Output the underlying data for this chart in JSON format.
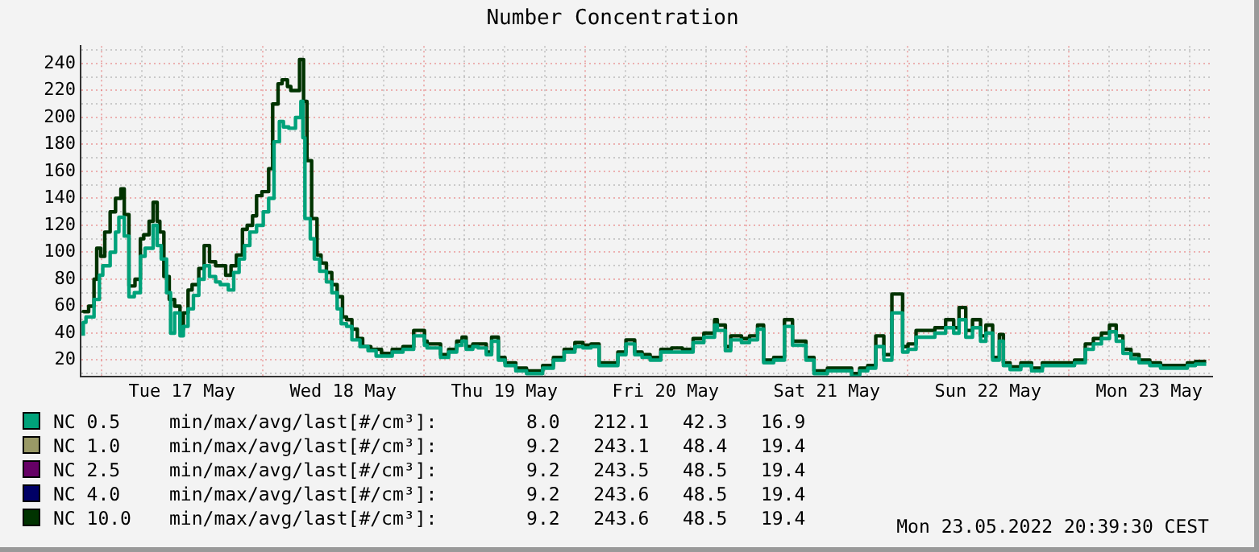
{
  "chart_data": {
    "type": "step",
    "title": "Number Concentration",
    "legend": "bottom left",
    "grid": true,
    "marker": "none",
    "xlim": [
      "2022-05-16T20:54",
      "2022-05-23T21:24"
    ],
    "xticks": [
      {
        "value": "2022-05-17T00:00",
        "label": null
      },
      {
        "value": "2022-05-17T06:00",
        "label": null
      },
      {
        "value": "2022-05-17T12:00",
        "label": "Tue 17 May"
      },
      {
        "value": "2022-05-17T18:00",
        "label": null
      },
      {
        "value": "2022-05-18T00:00",
        "label": null
      },
      {
        "value": "2022-05-18T06:00",
        "label": null
      },
      {
        "value": "2022-05-18T12:00",
        "label": "Wed 18 May"
      },
      {
        "value": "2022-05-18T18:00",
        "label": null
      },
      {
        "value": "2022-05-19T00:00",
        "label": null
      },
      {
        "value": "2022-05-19T06:00",
        "label": null
      },
      {
        "value": "2022-05-19T12:00",
        "label": "Thu 19 May"
      },
      {
        "value": "2022-05-19T18:00",
        "label": null
      },
      {
        "value": "2022-05-20T00:00",
        "label": null
      },
      {
        "value": "2022-05-20T06:00",
        "label": null
      },
      {
        "value": "2022-05-20T12:00",
        "label": "Fri 20 May"
      },
      {
        "value": "2022-05-20T18:00",
        "label": null
      },
      {
        "value": "2022-05-21T00:00",
        "label": null
      },
      {
        "value": "2022-05-21T06:00",
        "label": null
      },
      {
        "value": "2022-05-21T12:00",
        "label": "Sat 21 May"
      },
      {
        "value": "2022-05-21T18:00",
        "label": null
      },
      {
        "value": "2022-05-22T00:00",
        "label": null
      },
      {
        "value": "2022-05-22T06:00",
        "label": null
      },
      {
        "value": "2022-05-22T12:00",
        "label": "Sun 22 May"
      },
      {
        "value": "2022-05-22T18:00",
        "label": null
      },
      {
        "value": "2022-05-23T00:00",
        "label": null
      },
      {
        "value": "2022-05-23T06:00",
        "label": null
      },
      {
        "value": "2022-05-23T12:00",
        "label": "Mon 23 May"
      },
      {
        "value": "2022-05-23T18:00",
        "label": null
      }
    ],
    "ylim": [
      8,
      253
    ],
    "yticks": [
      {
        "value": 10,
        "label": null
      },
      20,
      {
        "value": 30,
        "label": null
      },
      40,
      {
        "value": 50,
        "label": null
      },
      60,
      {
        "value": 70,
        "label": null
      },
      80,
      {
        "value": 90,
        "label": null
      },
      100,
      {
        "value": 110,
        "label": null
      },
      120,
      {
        "value": 130,
        "label": null
      },
      140,
      {
        "value": 150,
        "label": null
      },
      160,
      {
        "value": 170,
        "label": null
      },
      180,
      {
        "value": 190,
        "label": null
      },
      200,
      {
        "value": 210,
        "label": null
      },
      220,
      {
        "value": 230,
        "label": null
      },
      240,
      {
        "value": 250,
        "label": null
      }
    ],
    "annotations": [
      "min/max/avg/last[#/cm³]:        8.0   212.1   42.3   16.9",
      "min/max/avg/last[#/cm³]:        9.2   243.1   48.4   19.4",
      "min/max/avg/last[#/cm³]:        9.2   243.5   48.5   19.4",
      "min/max/avg/last[#/cm³]:        9.2   243.6   48.5   19.4",
      "min/max/avg/last[#/cm³]:        9.2   243.6   48.5   19.4",
      "Mon 23.05.2022 20:39:30 CEST"
    ],
    "series": [
      {
        "name": "NC 0.5",
        "color": "#00a27a",
        "x": [
          "2022-05-16T21:18",
          "2022-05-16T21:42",
          "2022-05-16T22:54",
          "2022-05-16T23:42",
          "2022-05-17T00:12",
          "2022-05-17T01:18",
          "2022-05-17T02:06",
          "2022-05-17T02:36",
          "2022-05-17T03:24",
          "2022-05-17T04:06",
          "2022-05-17T04:54",
          "2022-05-17T05:48",
          "2022-05-17T06:30",
          "2022-05-17T07:42",
          "2022-05-17T08:18",
          "2022-05-17T08:54",
          "2022-05-17T09:42",
          "2022-05-17T10:18",
          "2022-05-17T10:54",
          "2022-05-17T11:42",
          "2022-05-17T12:12",
          "2022-05-17T12:54",
          "2022-05-17T13:42",
          "2022-05-17T14:30",
          "2022-05-17T15:18",
          "2022-05-17T16:06",
          "2022-05-17T17:00",
          "2022-05-17T17:42",
          "2022-05-17T18:54",
          "2022-05-17T19:42",
          "2022-05-17T20:30",
          "2022-05-17T21:18",
          "2022-05-17T22:06",
          "2022-05-17T23:06",
          "2022-05-18T00:06",
          "2022-05-18T00:54",
          "2022-05-18T01:42",
          "2022-05-18T02:30",
          "2022-05-18T03:06",
          "2022-05-18T03:54",
          "2022-05-18T04:54",
          "2022-05-18T05:42",
          "2022-05-18T06:00",
          "2022-05-18T06:18",
          "2022-05-18T07:06",
          "2022-05-18T07:42",
          "2022-05-18T08:30",
          "2022-05-18T09:30",
          "2022-05-18T10:18",
          "2022-05-18T11:06",
          "2022-05-18T11:42",
          "2022-05-18T12:30",
          "2022-05-18T13:18",
          "2022-05-18T14:30",
          "2022-05-18T15:42",
          "2022-05-18T16:54",
          "2022-05-18T19:18",
          "2022-05-18T20:54",
          "2022-05-18T22:30",
          "2022-05-19T00:06",
          "2022-05-19T00:30",
          "2022-05-19T02:30",
          "2022-05-19T03:42",
          "2022-05-19T04:54",
          "2022-05-19T05:42",
          "2022-05-19T06:18",
          "2022-05-19T07:18",
          "2022-05-19T08:06",
          "2022-05-19T09:18",
          "2022-05-19T10:06",
          "2022-05-19T11:06",
          "2022-05-19T12:06",
          "2022-05-19T13:42",
          "2022-05-19T15:18",
          "2022-05-19T17:42",
          "2022-05-19T19:18",
          "2022-05-19T20:54",
          "2022-05-19T22:30",
          "2022-05-19T23:42",
          "2022-05-20T00:54",
          "2022-05-20T02:06",
          "2022-05-20T03:18",
          "2022-05-20T04:54",
          "2022-05-20T06:06",
          "2022-05-20T07:24",
          "2022-05-20T08:30",
          "2022-05-20T09:42",
          "2022-05-20T11:18",
          "2022-05-20T12:54",
          "2022-05-20T14:30",
          "2022-05-20T16:06",
          "2022-05-20T17:42",
          "2022-05-20T19:18",
          "2022-05-20T19:42",
          "2022-05-20T20:54",
          "2022-05-20T21:42",
          "2022-05-20T23:18",
          "2022-05-21T00:30",
          "2022-05-21T01:42",
          "2022-05-21T02:36",
          "2022-05-21T04:06",
          "2022-05-21T05:42",
          "2022-05-21T06:54",
          "2022-05-21T07:42",
          "2022-05-21T08:54",
          "2022-05-21T10:06",
          "2022-05-21T12:06",
          "2022-05-21T14:06",
          "2022-05-21T15:42",
          "2022-05-21T16:54",
          "2022-05-21T18:06",
          "2022-05-21T19:18",
          "2022-05-21T20:30",
          "2022-05-21T21:42",
          "2022-05-21T23:18",
          "2022-05-22T00:06",
          "2022-05-22T01:18",
          "2022-05-22T02:30",
          "2022-05-22T04:06",
          "2022-05-22T05:42",
          "2022-05-22T06:54",
          "2022-05-22T07:42",
          "2022-05-22T08:42",
          "2022-05-22T09:42",
          "2022-05-22T10:54",
          "2022-05-22T11:42",
          "2022-05-22T12:42",
          "2022-05-22T13:42",
          "2022-05-22T14:18",
          "2022-05-22T15:18",
          "2022-05-22T16:54",
          "2022-05-22T18:30",
          "2022-05-22T20:06",
          "2022-05-22T21:18",
          "2022-05-22T22:54",
          "2022-05-23T00:54",
          "2022-05-23T02:30",
          "2022-05-23T03:42",
          "2022-05-23T04:54",
          "2022-05-23T06:06",
          "2022-05-23T07:06",
          "2022-05-23T08:06",
          "2022-05-23T09:18",
          "2022-05-23T10:30",
          "2022-05-23T12:06",
          "2022-05-23T13:42",
          "2022-05-23T15:18",
          "2022-05-23T16:54",
          "2022-05-23T17:42",
          "2022-05-23T18:54",
          "2022-05-23T20:30"
        ],
        "values": [
          38,
          48,
          52,
          65,
          83,
          90,
          100,
          115,
          126,
          112,
          67,
          70,
          97,
          103,
          120,
          105,
          95,
          70,
          40,
          55,
          38,
          45,
          58,
          68,
          80,
          90,
          82,
          78,
          76,
          72,
          85,
          95,
          105,
          115,
          120,
          130,
          140,
          182,
          197,
          193,
          192,
          200,
          212,
          185,
          125,
          110,
          95,
          86,
          78,
          70,
          58,
          47,
          45,
          35,
          30,
          27,
          23,
          26,
          28,
          38,
          31,
          29,
          22,
          26,
          31,
          34,
          28,
          30,
          29,
          24,
          34,
          20,
          16,
          12,
          10,
          14,
          20,
          26,
          30,
          29,
          30,
          16,
          16,
          24,
          32,
          24,
          22,
          20,
          26,
          26,
          26,
          33,
          37,
          46,
          42,
          27,
          35,
          33,
          35,
          43,
          18,
          20,
          45,
          31,
          31,
          20,
          10,
          12,
          12,
          8,
          12,
          14,
          30,
          20,
          55,
          26,
          28,
          37,
          37,
          40,
          44,
          40,
          50,
          37,
          44,
          34,
          40,
          20,
          34,
          16,
          13,
          16,
          12,
          16,
          16,
          16,
          18,
          28,
          32,
          36,
          41,
          34,
          25,
          21,
          18,
          16,
          14,
          14,
          14,
          16,
          17
        ]
      },
      {
        "name": "NC 1.0",
        "color": "#999966",
        "values": [
          null
        ]
      },
      {
        "name": "NC 2.5",
        "color": "#660066",
        "values": [
          null
        ]
      },
      {
        "name": "NC 4.0",
        "color": "#000066",
        "values": [
          null
        ]
      },
      {
        "name": "NC 10.0",
        "color": "#003300",
        "x": [
          "2022-05-16T21:18",
          "2022-05-16T22:06",
          "2022-05-16T22:54",
          "2022-05-16T23:18",
          "2022-05-16T23:54",
          "2022-05-17T00:30",
          "2022-05-17T01:18",
          "2022-05-17T02:06",
          "2022-05-17T02:54",
          "2022-05-17T03:24",
          "2022-05-17T04:06",
          "2022-05-17T05:00",
          "2022-05-17T05:48",
          "2022-05-17T06:18",
          "2022-05-17T07:06",
          "2022-05-17T07:42",
          "2022-05-17T08:18",
          "2022-05-17T08:42",
          "2022-05-17T09:18",
          "2022-05-17T10:06",
          "2022-05-17T10:54",
          "2022-05-17T11:42",
          "2022-05-17T12:12",
          "2022-05-17T12:54",
          "2022-05-17T13:30",
          "2022-05-17T14:30",
          "2022-05-17T15:18",
          "2022-05-17T16:06",
          "2022-05-17T17:00",
          "2022-05-17T17:42",
          "2022-05-17T18:30",
          "2022-05-17T19:18",
          "2022-05-17T20:06",
          "2022-05-17T21:00",
          "2022-05-17T21:42",
          "2022-05-17T22:30",
          "2022-05-17T23:06",
          "2022-05-17T23:54",
          "2022-05-18T00:54",
          "2022-05-18T01:30",
          "2022-05-18T02:18",
          "2022-05-18T02:54",
          "2022-05-18T03:42",
          "2022-05-18T04:12",
          "2022-05-18T05:00",
          "2022-05-18T05:30",
          "2022-05-18T06:06",
          "2022-05-18T06:36",
          "2022-05-18T07:18",
          "2022-05-18T08:06",
          "2022-05-18T08:42",
          "2022-05-18T09:30",
          "2022-05-18T10:18",
          "2022-05-18T11:06",
          "2022-05-18T11:54",
          "2022-05-18T12:30",
          "2022-05-18T13:18",
          "2022-05-18T14:06",
          "2022-05-18T14:54",
          "2022-05-18T16:06",
          "2022-05-18T17:42",
          "2022-05-18T19:18",
          "2022-05-18T20:54",
          "2022-05-18T22:30",
          "2022-05-19T00:06",
          "2022-05-19T00:30",
          "2022-05-19T02:30",
          "2022-05-19T03:42",
          "2022-05-19T04:54",
          "2022-05-19T05:42",
          "2022-05-19T06:18",
          "2022-05-19T07:18",
          "2022-05-19T08:06",
          "2022-05-19T09:18",
          "2022-05-19T10:06",
          "2022-05-19T11:06",
          "2022-05-19T12:06",
          "2022-05-19T13:42",
          "2022-05-19T15:18",
          "2022-05-19T17:42",
          "2022-05-19T19:18",
          "2022-05-19T20:54",
          "2022-05-19T22:30",
          "2022-05-19T23:42",
          "2022-05-20T00:54",
          "2022-05-20T02:06",
          "2022-05-20T03:18",
          "2022-05-20T04:54",
          "2022-05-20T06:06",
          "2022-05-20T07:24",
          "2022-05-20T08:30",
          "2022-05-20T09:42",
          "2022-05-20T11:18",
          "2022-05-20T12:54",
          "2022-05-20T14:30",
          "2022-05-20T16:06",
          "2022-05-20T17:42",
          "2022-05-20T19:18",
          "2022-05-20T19:42",
          "2022-05-20T20:54",
          "2022-05-20T21:42",
          "2022-05-20T23:18",
          "2022-05-21T00:30",
          "2022-05-21T01:42",
          "2022-05-21T02:36",
          "2022-05-21T04:06",
          "2022-05-21T05:42",
          "2022-05-21T06:54",
          "2022-05-21T07:42",
          "2022-05-21T08:54",
          "2022-05-21T10:06",
          "2022-05-21T12:06",
          "2022-05-21T14:06",
          "2022-05-21T15:42",
          "2022-05-21T16:54",
          "2022-05-21T18:06",
          "2022-05-21T19:18",
          "2022-05-21T20:30",
          "2022-05-21T21:42",
          "2022-05-21T23:18",
          "2022-05-22T00:06",
          "2022-05-22T01:18",
          "2022-05-22T02:30",
          "2022-05-22T04:06",
          "2022-05-22T05:42",
          "2022-05-22T06:54",
          "2022-05-22T07:42",
          "2022-05-22T08:42",
          "2022-05-22T09:42",
          "2022-05-22T10:54",
          "2022-05-22T11:42",
          "2022-05-22T12:42",
          "2022-05-22T13:42",
          "2022-05-22T14:18",
          "2022-05-22T15:18",
          "2022-05-22T16:54",
          "2022-05-22T18:30",
          "2022-05-22T20:06",
          "2022-05-22T21:18",
          "2022-05-22T22:54",
          "2022-05-23T00:54",
          "2022-05-23T02:30",
          "2022-05-23T03:42",
          "2022-05-23T04:54",
          "2022-05-23T06:06",
          "2022-05-23T07:06",
          "2022-05-23T08:06",
          "2022-05-23T09:18",
          "2022-05-23T10:30",
          "2022-05-23T12:06",
          "2022-05-23T13:42",
          "2022-05-23T15:18",
          "2022-05-23T16:54",
          "2022-05-23T17:42",
          "2022-05-23T18:54",
          "2022-05-23T20:30"
        ],
        "values": [
          55,
          56,
          60,
          80,
          103,
          97,
          115,
          130,
          140,
          147,
          128,
          75,
          80,
          110,
          113,
          123,
          137,
          123,
          115,
          82,
          65,
          60,
          43,
          55,
          72,
          76,
          88,
          105,
          93,
          90,
          90,
          83,
          90,
          98,
          117,
          120,
          127,
          142,
          145,
          162,
          210,
          225,
          228,
          223,
          220,
          220,
          243,
          212,
          168,
          125,
          98,
          92,
          85,
          76,
          67,
          52,
          50,
          43,
          36,
          30,
          28,
          25,
          28,
          30,
          42,
          34,
          32,
          24,
          28,
          34,
          37,
          30,
          32,
          32,
          26,
          37,
          22,
          18,
          14,
          12,
          16,
          22,
          28,
          33,
          31,
          32,
          18,
          18,
          26,
          35,
          26,
          24,
          22,
          28,
          29,
          28,
          36,
          40,
          50,
          46,
          30,
          38,
          36,
          38,
          46,
          20,
          22,
          50,
          34,
          34,
          22,
          12,
          14,
          14,
          10,
          14,
          16,
          38,
          24,
          69,
          30,
          32,
          42,
          42,
          44,
          50,
          44,
          59,
          42,
          50,
          38,
          46,
          22,
          39,
          18,
          15,
          18,
          14,
          18,
          18,
          18,
          20,
          32,
          36,
          40,
          46,
          38,
          28,
          24,
          20,
          18,
          16,
          16,
          16,
          18,
          19
        ]
      }
    ]
  }
}
